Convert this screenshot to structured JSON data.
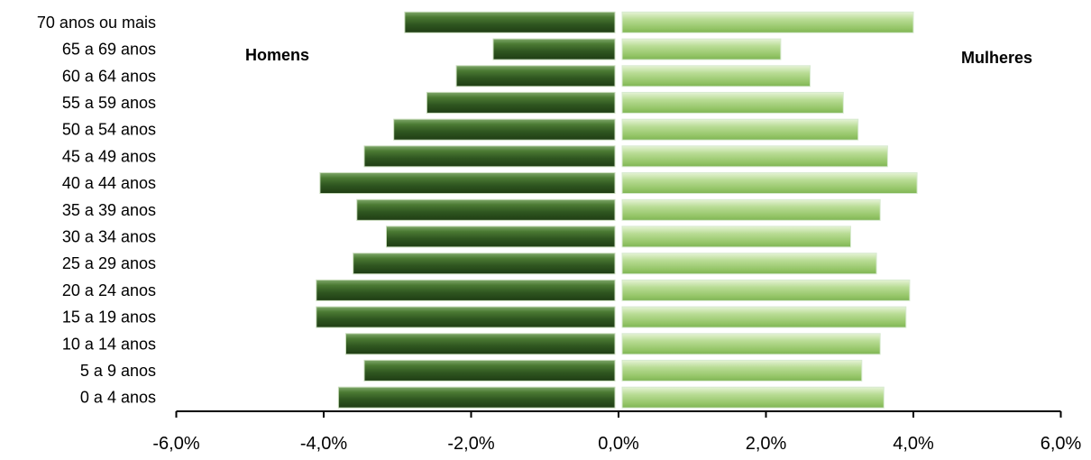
{
  "chart_data": {
    "type": "bar",
    "orientation": "horizontal",
    "layout": "population-pyramid",
    "categories": [
      "0 a 4 anos",
      "5 a 9 anos",
      "10 a 14 anos",
      "15 a 19 anos",
      "20 a 24 anos",
      "25 a 29 anos",
      "30 a 34 anos",
      "35 a 39 anos",
      "40 a 44 anos",
      "45 a 49 anos",
      "50 a 54 anos",
      "55 a 59 anos",
      "60 a 64 anos",
      "65 a 69 anos",
      "70 anos ou mais"
    ],
    "series": [
      {
        "name": "Homens",
        "values": [
          -3.8,
          -3.45,
          -3.7,
          -4.1,
          -4.1,
          -3.6,
          -3.15,
          -3.55,
          -4.05,
          -3.45,
          -3.05,
          -2.6,
          -2.2,
          -1.7,
          -2.9
        ],
        "color": "#3f6a2a"
      },
      {
        "name": "Mulheres",
        "values": [
          3.6,
          3.3,
          3.55,
          3.9,
          3.95,
          3.5,
          3.15,
          3.55,
          4.05,
          3.65,
          3.25,
          3.05,
          2.6,
          2.2,
          4.0
        ],
        "color": "#a6cf7d"
      }
    ],
    "xlim": [
      -6.0,
      6.0
    ],
    "xticks": [
      -6.0,
      -4.0,
      -2.0,
      0.0,
      2.0,
      4.0,
      6.0
    ],
    "xtick_labels": [
      "-6,0%",
      "-4,0%",
      "-2,0%",
      "0,0%",
      "2,0%",
      "4,0%",
      "6,0%"
    ],
    "title": "",
    "xlabel": "",
    "ylabel": "",
    "grid": false,
    "series_labels_placement": "inside-top"
  }
}
